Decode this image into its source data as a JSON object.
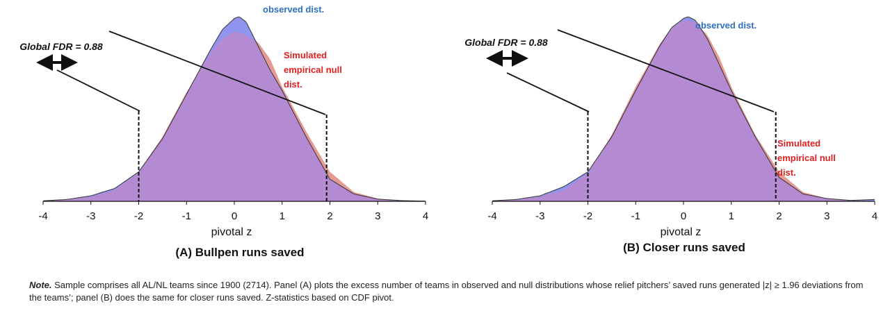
{
  "figure": {
    "note_label": "Note.",
    "note_text": "Sample comprises all AL/NL teams since 1900 (2714).  Panel (A) plots the excess number of teams in observed and null distributions whose relief pitchers’ saved runs generated |z| ≥ 1.96 deviations from the teams’; panel (B) does the same for closer runs saved. Z-statistics based on CDF pivot.",
    "colors": {
      "observed": "#8f95ee",
      "null": "#e59b94",
      "overlap": "#b48ad2",
      "observed_label": "#2e6fbf",
      "null_label": "#e02020",
      "text": "#111111"
    }
  },
  "chart_data": [
    {
      "type": "area",
      "panel_title": "(A) Bullpen runs saved",
      "xlabel": "pivotal z",
      "xlim": [
        -4,
        4
      ],
      "xticks": [
        "-4",
        "-3",
        "-2",
        "-1",
        "0",
        "1",
        "2",
        "3",
        "4"
      ],
      "grid": false,
      "fdr_label": "Global FDR = 0.88",
      "thresholds": [
        -2.0,
        1.93
      ],
      "series": [
        {
          "name": "observed dist.",
          "x": [
            -4,
            -3.5,
            -3,
            -2.5,
            -2,
            -1.5,
            -1,
            -0.5,
            -0.25,
            0,
            0.1,
            0.25,
            0.5,
            0.75,
            1,
            1.5,
            2,
            2.5,
            3,
            3.5,
            4
          ],
          "y": [
            0.003,
            0.01,
            0.03,
            0.07,
            0.16,
            0.34,
            0.58,
            0.82,
            0.93,
            0.99,
            1.0,
            0.97,
            0.84,
            0.71,
            0.6,
            0.35,
            0.12,
            0.04,
            0.012,
            0.004,
            0.001
          ]
        },
        {
          "name": "Simulated empirical null dist.",
          "x": [
            -4,
            -3.5,
            -3,
            -2.5,
            -2,
            -1.5,
            -1,
            -0.5,
            -0.25,
            0,
            0.25,
            0.5,
            0.75,
            1,
            1.5,
            2,
            2.5,
            3,
            3.5,
            4
          ],
          "y": [
            0.002,
            0.008,
            0.025,
            0.06,
            0.16,
            0.35,
            0.59,
            0.8,
            0.88,
            0.92,
            0.9,
            0.86,
            0.77,
            0.62,
            0.38,
            0.16,
            0.05,
            0.015,
            0.004,
            0.001
          ]
        }
      ]
    },
    {
      "type": "area",
      "panel_title": "(B) Closer runs saved",
      "xlabel": "pivotal z",
      "xlim": [
        -4,
        4
      ],
      "xticks": [
        "-4",
        "-3",
        "-2",
        "-1",
        "0",
        "1",
        "2",
        "3",
        "4"
      ],
      "grid": false,
      "fdr_label": "Global FDR = 0.88",
      "thresholds": [
        -2.0,
        1.93
      ],
      "series": [
        {
          "name": "observed dist.",
          "x": [
            -4,
            -3.5,
            -3,
            -2.5,
            -2,
            -1.5,
            -1,
            -0.5,
            -0.25,
            0,
            0.1,
            0.25,
            0.5,
            0.75,
            1,
            1.5,
            2,
            2.5,
            3,
            3.5,
            4
          ],
          "y": [
            0.003,
            0.01,
            0.03,
            0.08,
            0.16,
            0.35,
            0.6,
            0.84,
            0.94,
            0.99,
            1.0,
            0.98,
            0.88,
            0.74,
            0.6,
            0.35,
            0.13,
            0.04,
            0.015,
            0.005,
            0.01
          ]
        },
        {
          "name": "Simulated empirical null dist.",
          "x": [
            -4,
            -3.5,
            -3,
            -2.5,
            -2,
            -1.5,
            -1,
            -0.5,
            -0.25,
            0,
            0.25,
            0.5,
            0.75,
            1,
            1.5,
            2,
            2.5,
            3,
            3.5,
            4
          ],
          "y": [
            0.002,
            0.008,
            0.025,
            0.06,
            0.15,
            0.36,
            0.62,
            0.85,
            0.94,
            0.98,
            0.97,
            0.9,
            0.78,
            0.62,
            0.36,
            0.16,
            0.05,
            0.015,
            0.004,
            0.001
          ]
        }
      ]
    }
  ]
}
